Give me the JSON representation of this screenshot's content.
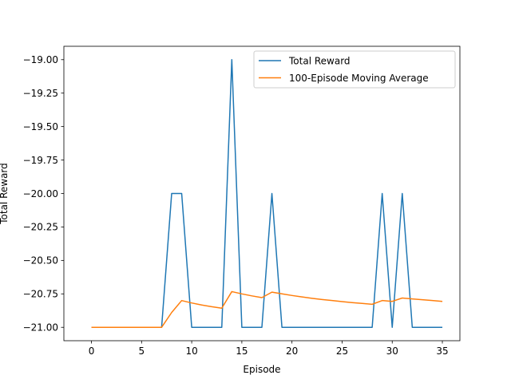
{
  "chart_data": {
    "type": "line",
    "title": "",
    "xlabel": "Episode",
    "ylabel": "Total Reward",
    "xlim": [
      -2.75,
      36.75
    ],
    "ylim": [
      -21.1,
      -18.9
    ],
    "xticks": [
      0,
      5,
      10,
      15,
      20,
      25,
      30,
      35
    ],
    "yticks": [
      -21.0,
      -20.75,
      -20.5,
      -20.25,
      -20.0,
      -19.75,
      -19.5,
      -19.25,
      -19.0
    ],
    "ytick_labels": [
      "−21.00",
      "−20.75",
      "−20.50",
      "−20.25",
      "−20.00",
      "−19.75",
      "−19.50",
      "−19.25",
      "−19.00"
    ],
    "xtick_labels": [
      "0",
      "5",
      "10",
      "15",
      "20",
      "25",
      "30",
      "35"
    ],
    "grid": false,
    "legend_position": "top-right",
    "x": [
      0,
      1,
      2,
      3,
      4,
      5,
      6,
      7,
      8,
      9,
      10,
      11,
      12,
      13,
      14,
      15,
      16,
      17,
      18,
      19,
      20,
      21,
      22,
      23,
      24,
      25,
      26,
      27,
      28,
      29,
      30,
      31,
      32,
      33,
      34,
      35
    ],
    "series": [
      {
        "name": "Total Reward",
        "color": "#1f77b4",
        "values": [
          -21,
          -21,
          -21,
          -21,
          -21,
          -21,
          -21,
          -21,
          -20,
          -20,
          -21,
          -21,
          -21,
          -21,
          -19,
          -21,
          -21,
          -21,
          -20,
          -21,
          -21,
          -21,
          -21,
          -21,
          -21,
          -21,
          -21,
          -21,
          -21,
          -20,
          -21,
          -20,
          -21,
          -21,
          -21,
          -21
        ]
      },
      {
        "name": "100-Episode Moving Average",
        "color": "#ff7f0e",
        "values": [
          -21,
          -21,
          -21,
          -21,
          -21,
          -21,
          -21,
          -21,
          -20.889,
          -20.8,
          -20.818,
          -20.833,
          -20.846,
          -20.857,
          -20.733,
          -20.75,
          -20.765,
          -20.778,
          -20.737,
          -20.75,
          -20.762,
          -20.773,
          -20.783,
          -20.792,
          -20.8,
          -20.808,
          -20.815,
          -20.821,
          -20.828,
          -20.8,
          -20.806,
          -20.781,
          -20.788,
          -20.794,
          -20.8,
          -20.806
        ]
      }
    ]
  }
}
